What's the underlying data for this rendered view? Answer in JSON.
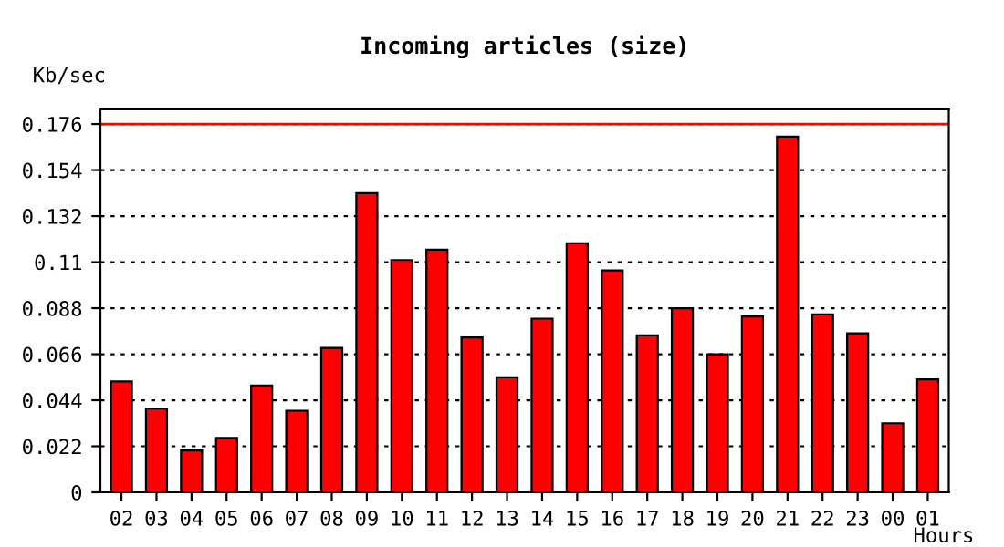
{
  "chart_data": {
    "type": "bar",
    "title": "Incoming articles (size)",
    "xlabel": "Hours",
    "ylabel": "Kb/sec",
    "categories": [
      "02",
      "03",
      "04",
      "05",
      "06",
      "07",
      "08",
      "09",
      "10",
      "11",
      "12",
      "13",
      "14",
      "15",
      "16",
      "17",
      "18",
      "19",
      "20",
      "21",
      "22",
      "23",
      "00",
      "01"
    ],
    "values": [
      0.053,
      0.04,
      0.02,
      0.026,
      0.051,
      0.039,
      0.069,
      0.143,
      0.111,
      0.116,
      0.074,
      0.055,
      0.083,
      0.119,
      0.106,
      0.075,
      0.088,
      0.066,
      0.084,
      0.17,
      0.085,
      0.076,
      0.033,
      0.054
    ],
    "color": "#ff0000",
    "ylim": [
      0,
      0.183
    ],
    "yticks": [
      0,
      0.022,
      0.044,
      0.066,
      0.088,
      0.11,
      0.132,
      0.154,
      0.176
    ],
    "grid": "y",
    "ref_lines": [
      {
        "axis": "y",
        "value": 0.176,
        "color": "#ff0000",
        "line_style": "solid"
      }
    ]
  }
}
